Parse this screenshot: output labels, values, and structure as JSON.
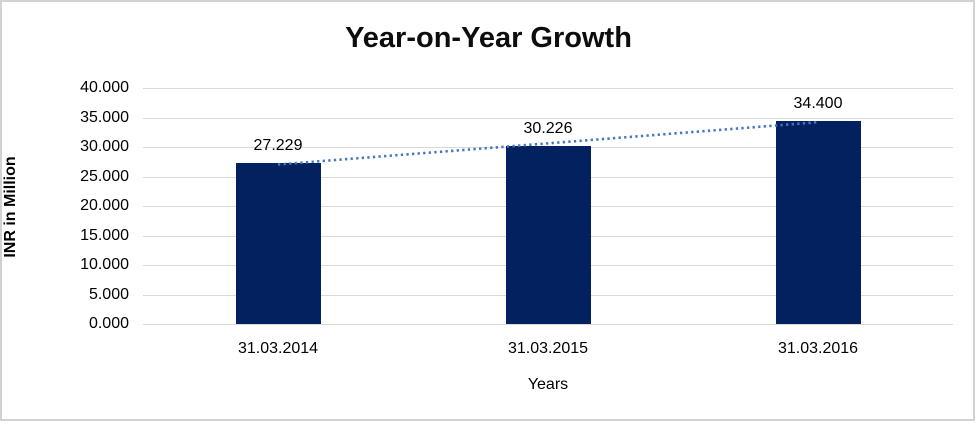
{
  "chart_data": {
    "type": "bar",
    "title": "Year-on-Year Growth",
    "xlabel": "Years",
    "ylabel": "INR in Million",
    "categories": [
      "31.03.2014",
      "31.03.2015",
      "31.03.2016"
    ],
    "values": [
      27.229,
      30.226,
      34.4
    ],
    "data_labels": [
      "27.229",
      "30.226",
      "34.400"
    ],
    "y_ticks": [
      "40.000",
      "35.000",
      "30.000",
      "25.000",
      "20.000",
      "15.000",
      "10.000",
      "5.000",
      "0.000"
    ],
    "ylim": [
      0,
      40
    ],
    "y_step": 5,
    "grid": true,
    "legend": "none",
    "bar_color": "#03215f",
    "gridline_color": "#d9d9d9",
    "frame_border_color": "#d2d2d2",
    "trendline": {
      "show": true,
      "fit": "linear",
      "style": "dotted",
      "color": "#4677be"
    }
  }
}
